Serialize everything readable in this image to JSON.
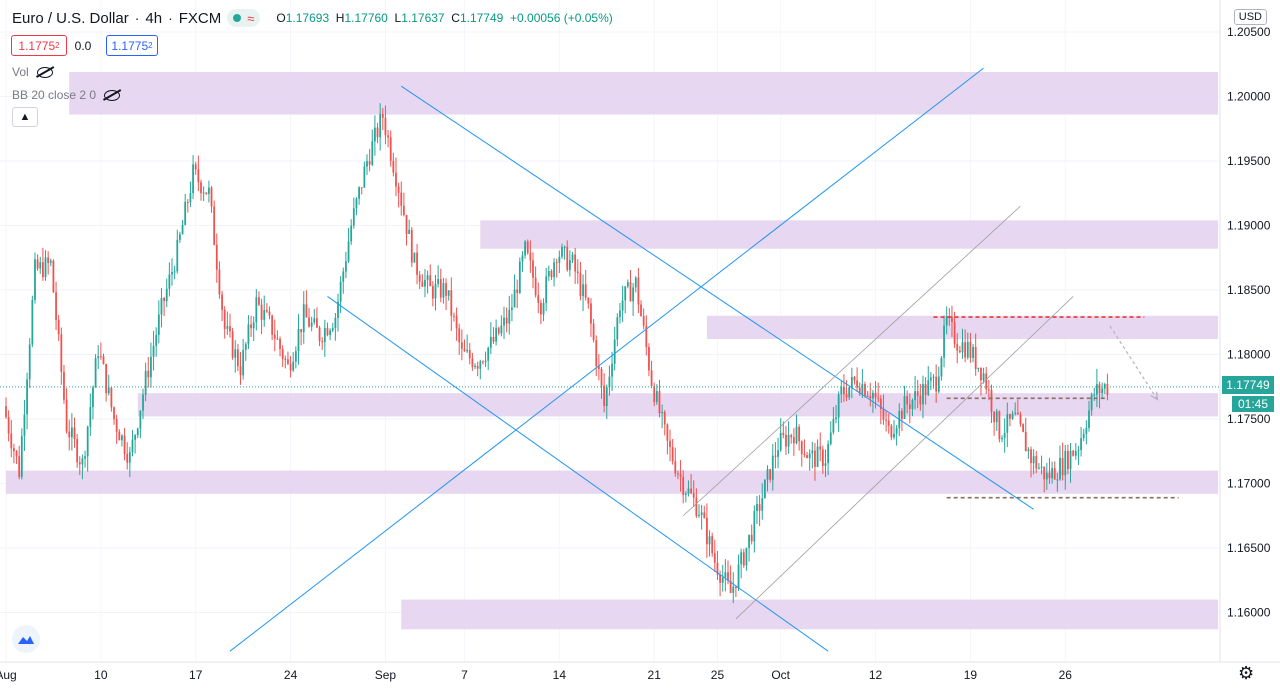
{
  "header": {
    "symbol": "Euro / U.S. Dollar",
    "interval": "4h",
    "exchange": "FXCM",
    "ohlc": {
      "o_label": "O",
      "o": "1.17693",
      "h_label": "H",
      "h": "1.17760",
      "l_label": "L",
      "l": "1.17637",
      "c_label": "C",
      "c": "1.17749",
      "change": "+0.00056 (+0.05%)"
    }
  },
  "trade": {
    "sell": "1.1775",
    "sell_sup": "2",
    "spread": "0.0",
    "buy": "1.1775",
    "buy_sup": "2"
  },
  "indicators": {
    "vol": "Vol",
    "bb": "BB 20 close 2 0"
  },
  "axis": {
    "currency": "USD",
    "last_price": "1.17749",
    "countdown": "01:45"
  },
  "colors": {
    "up": "#26a69a",
    "down": "#ef5350",
    "zone": "#e6d3ef",
    "trend": "#2196f3",
    "channel": "#9e9e9e",
    "resistance": "#e53935",
    "support": "#8d6e63"
  },
  "icons": {
    "eye": "eye-crossed-icon",
    "collapse": "chevron-up-icon",
    "logo": "tradingview-logo-icon",
    "settings": "gear-icon"
  },
  "chart_data": {
    "type": "candlestick",
    "symbol": "EUR/USD",
    "timeframe": "4h",
    "ylim": [
      1.157,
      1.2072
    ],
    "y_ticks": [
      "1.20500",
      "1.20000",
      "1.19500",
      "1.19000",
      "1.18500",
      "1.18000",
      "1.17500",
      "1.17000",
      "1.16500",
      "1.16000"
    ],
    "y_tick_values": [
      1.205,
      1.2,
      1.195,
      1.19,
      1.185,
      1.18,
      1.175,
      1.17,
      1.165,
      1.16
    ],
    "x_ticks": [
      "Aug",
      "10",
      "17",
      "24",
      "Sep",
      "7",
      "14",
      "21",
      "25",
      "Oct",
      "12",
      "19",
      "26"
    ],
    "x_tick_bars": [
      0,
      36,
      72,
      108,
      144,
      174,
      210,
      246,
      270,
      294,
      330,
      366,
      402
    ],
    "price_path": [
      [
        0,
        1.176
      ],
      [
        6,
        1.171
      ],
      [
        12,
        1.1865
      ],
      [
        18,
        1.187
      ],
      [
        24,
        1.1745
      ],
      [
        30,
        1.1715
      ],
      [
        36,
        1.1805
      ],
      [
        42,
        1.175
      ],
      [
        48,
        1.172
      ],
      [
        54,
        1.178
      ],
      [
        60,
        1.1835
      ],
      [
        66,
        1.188
      ],
      [
        72,
        1.194
      ],
      [
        78,
        1.1925
      ],
      [
        84,
        1.182
      ],
      [
        90,
        1.179
      ],
      [
        96,
        1.184
      ],
      [
        102,
        1.182
      ],
      [
        108,
        1.179
      ],
      [
        114,
        1.183
      ],
      [
        120,
        1.1815
      ],
      [
        126,
        1.183
      ],
      [
        132,
        1.19
      ],
      [
        138,
        1.195
      ],
      [
        144,
        1.1985
      ],
      [
        150,
        1.193
      ],
      [
        156,
        1.187
      ],
      [
        162,
        1.185
      ],
      [
        168,
        1.185
      ],
      [
        174,
        1.18
      ],
      [
        180,
        1.1795
      ],
      [
        186,
        1.181
      ],
      [
        192,
        1.183
      ],
      [
        198,
        1.188
      ],
      [
        204,
        1.184
      ],
      [
        210,
        1.188
      ],
      [
        216,
        1.187
      ],
      [
        222,
        1.1835
      ],
      [
        228,
        1.176
      ],
      [
        234,
        1.184
      ],
      [
        240,
        1.1855
      ],
      [
        246,
        1.178
      ],
      [
        252,
        1.173
      ],
      [
        258,
        1.17
      ],
      [
        264,
        1.168
      ],
      [
        270,
        1.164
      ],
      [
        276,
        1.1615
      ],
      [
        282,
        1.165
      ],
      [
        288,
        1.169
      ],
      [
        294,
        1.173
      ],
      [
        300,
        1.174
      ],
      [
        306,
        1.172
      ],
      [
        312,
        1.172
      ],
      [
        318,
        1.177
      ],
      [
        324,
        1.178
      ],
      [
        330,
        1.177
      ],
      [
        336,
        1.174
      ],
      [
        342,
        1.176
      ],
      [
        348,
        1.177
      ],
      [
        354,
        1.178
      ],
      [
        358,
        1.1825
      ],
      [
        362,
        1.181
      ],
      [
        366,
        1.1805
      ],
      [
        372,
        1.1785
      ],
      [
        378,
        1.174
      ],
      [
        384,
        1.175
      ],
      [
        390,
        1.172
      ],
      [
        396,
        1.1705
      ],
      [
        402,
        1.1715
      ],
      [
        408,
        1.173
      ],
      [
        414,
        1.177
      ],
      [
        418,
        1.1775
      ]
    ],
    "zones": [
      {
        "from_bar": 24,
        "to_bar": 460,
        "top": 1.2019,
        "bottom": 1.1986
      },
      {
        "from_bar": 180,
        "to_bar": 460,
        "top": 1.1904,
        "bottom": 1.1882
      },
      {
        "from_bar": 266,
        "to_bar": 460,
        "top": 1.183,
        "bottom": 1.1812
      },
      {
        "from_bar": 50,
        "to_bar": 460,
        "top": 1.177,
        "bottom": 1.1752
      },
      {
        "from_bar": 0,
        "to_bar": 460,
        "top": 1.171,
        "bottom": 1.1692
      },
      {
        "from_bar": 150,
        "to_bar": 460,
        "top": 1.161,
        "bottom": 1.1587
      }
    ],
    "trendlines": [
      {
        "kind": "support",
        "from": [
          85,
          1.157
        ],
        "to": [
          371,
          1.2022
        ]
      },
      {
        "kind": "resistance",
        "from": [
          150,
          1.2008
        ],
        "to": [
          390,
          1.168
        ]
      },
      {
        "kind": "resistance",
        "from": [
          122,
          1.1845
        ],
        "to": [
          312,
          1.157
        ]
      }
    ],
    "channel": [
      {
        "from": [
          257,
          1.1675
        ],
        "to": [
          385,
          1.1915
        ]
      },
      {
        "from": [
          277,
          1.1595
        ],
        "to": [
          405,
          1.1845
        ]
      }
    ],
    "levels": [
      {
        "kind": "resistance",
        "price": 1.1829,
        "from_bar": 352,
        "to_bar": 432
      },
      {
        "kind": "pivot",
        "price": 1.1766,
        "from_bar": 357,
        "to_bar": 417
      },
      {
        "kind": "support",
        "price": 1.1689,
        "from_bar": 357,
        "to_bar": 445
      }
    ],
    "projection": {
      "from": [
        419,
        1.1822
      ],
      "to": [
        437,
        1.1765
      ]
    },
    "last_price": 1.17749
  }
}
